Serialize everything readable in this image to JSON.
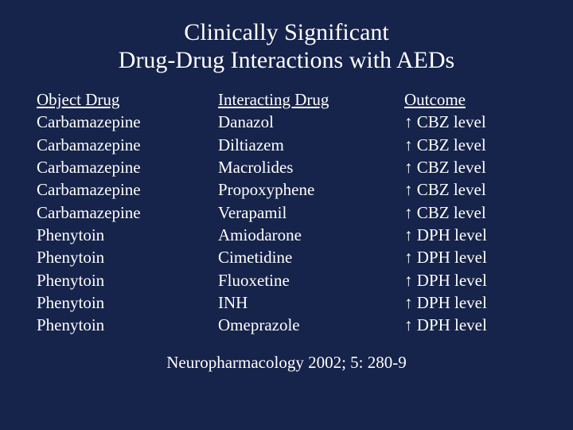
{
  "title": {
    "line1": "Clinically Significant",
    "line2": "Drug-Drug Interactions with AEDs"
  },
  "headers": {
    "col1": "Object Drug",
    "col2": "Interacting Drug",
    "col3": "Outcome"
  },
  "rows": [
    {
      "c1": "Carbamazepine",
      "c2": "Danazol",
      "c3": "↑ CBZ level"
    },
    {
      "c1": "Carbamazepine",
      "c2": "Diltiazem",
      "c3": "↑ CBZ level"
    },
    {
      "c1": "Carbamazepine",
      "c2": "Macrolides",
      "c3": "↑ CBZ level"
    },
    {
      "c1": "Carbamazepine",
      "c2": "Propoxyphene",
      "c3": "↑ CBZ level"
    },
    {
      "c1": "Carbamazepine",
      "c2": "Verapamil",
      "c3": "↑ CBZ level"
    },
    {
      "c1": "Phenytoin",
      "c2": "Amiodarone",
      "c3": "↑ DPH level"
    },
    {
      "c1": "Phenytoin",
      "c2": "Cimetidine",
      "c3": "↑ DPH level"
    },
    {
      "c1": "Phenytoin",
      "c2": "Fluoxetine",
      "c3": "↑ DPH level"
    },
    {
      "c1": "Phenytoin",
      "c2": "INH",
      "c3": "↑ DPH level"
    },
    {
      "c1": "Phenytoin",
      "c2": "Omeprazole",
      "c3": "↑ DPH level"
    }
  ],
  "citation": "Neuropharmacology 2002; 5: 280-9",
  "style": {
    "background_color": "#16234a",
    "text_color": "#ffffff",
    "title_fontsize": 30,
    "body_fontsize": 21,
    "font_family": "Times New Roman"
  }
}
